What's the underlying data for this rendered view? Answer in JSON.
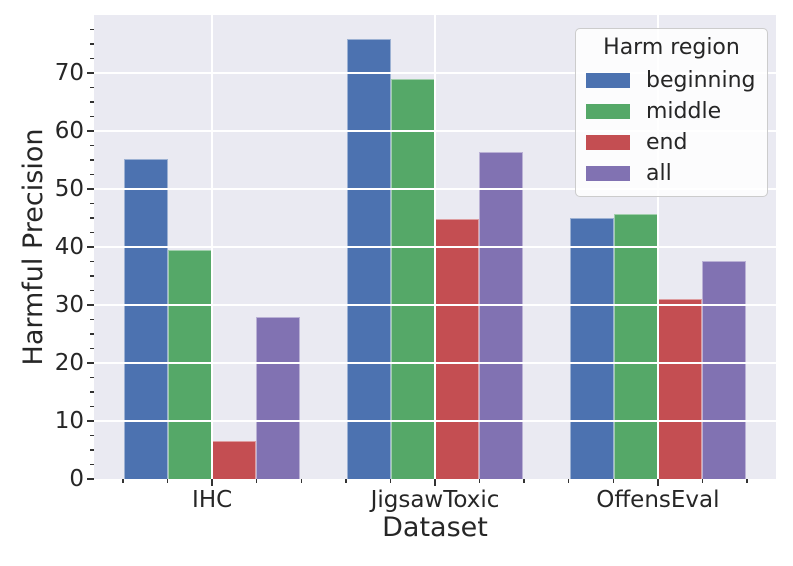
{
  "chart_data": {
    "type": "bar",
    "title": "",
    "xlabel": "Dataset",
    "ylabel": "Harmful Precision",
    "categories": [
      "IHC",
      "JigsawToxic",
      "OffensEval"
    ],
    "series": [
      {
        "name": "beginning",
        "color": "#4c72b0",
        "values": [
          55.1,
          75.8,
          45.0
        ]
      },
      {
        "name": "middle",
        "color": "#55a868",
        "values": [
          39.5,
          69.0,
          45.7
        ]
      },
      {
        "name": "end",
        "color": "#c44e52",
        "values": [
          6.5,
          44.8,
          31.0
        ]
      },
      {
        "name": "all",
        "color": "#8172b2",
        "values": [
          28.0,
          56.4,
          37.6
        ]
      }
    ],
    "legend": {
      "title": "Harm region",
      "position": "upper right"
    },
    "ylim": [
      0,
      80
    ],
    "yticks": [
      0,
      10,
      20,
      30,
      40,
      50,
      60,
      70
    ],
    "minor_ticks": {
      "y_step": 2.5,
      "x_step": 0.2
    },
    "grid": true,
    "grid_over_bars": true
  },
  "style": {
    "figure_bg": "#ffffff",
    "plot_bg": "#eaeaf2",
    "grid_color": "#ffffff",
    "text_color": "#262626",
    "tick_color": "#333333",
    "legend_bg": "#ffffff",
    "legend_border": "#cccccc"
  }
}
